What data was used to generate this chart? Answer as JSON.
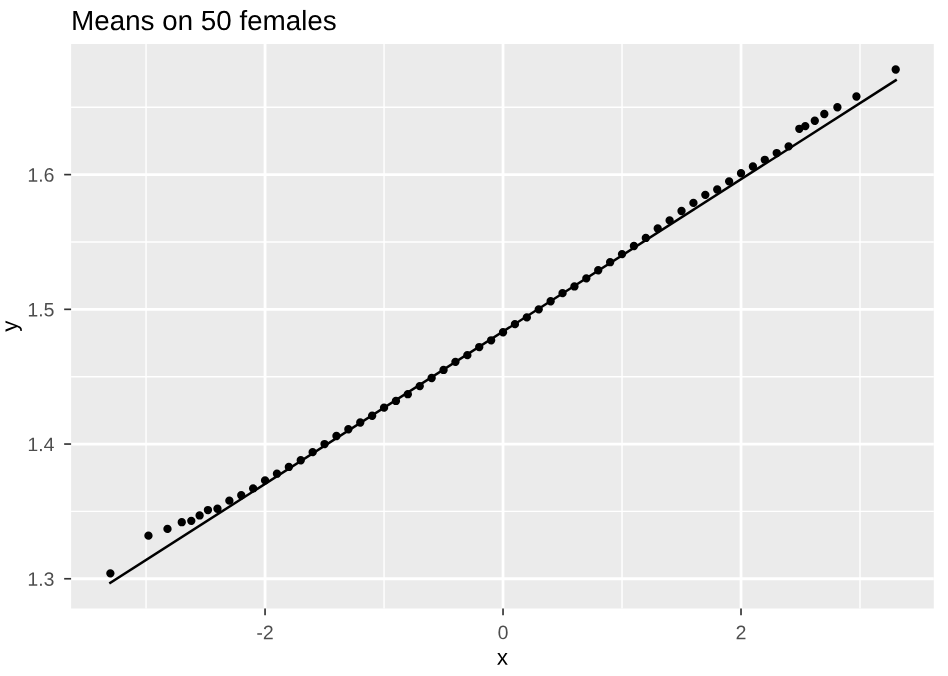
{
  "chart_data": {
    "type": "scatter",
    "title": "Means on 50 females",
    "xlabel": "x",
    "ylabel": "y",
    "xlim": [
      -3.63,
      3.62
    ],
    "ylim": [
      1.278,
      1.697
    ],
    "xticks": [
      {
        "value": -3,
        "label": null
      },
      -2,
      {
        "value": -1,
        "label": null
      },
      0,
      {
        "value": 1,
        "label": null
      },
      2,
      {
        "value": 3,
        "label": null
      }
    ],
    "yticks": [
      1.3,
      {
        "value": 1.35,
        "label": null
      },
      1.4,
      {
        "value": 1.45,
        "label": null
      },
      1.5,
      {
        "value": 1.55,
        "label": null
      },
      1.6,
      {
        "value": 1.65,
        "label": null
      }
    ],
    "grid": true,
    "legend": false,
    "series": [
      {
        "color": "#000000",
        "marker": "circle",
        "x": [
          -3.3,
          -2.98,
          -2.82,
          -2.7,
          -2.62,
          -2.55,
          -2.48,
          -2.4,
          -2.3,
          -2.2,
          -2.1,
          -2.0,
          -1.9,
          -1.8,
          -1.7,
          -1.6,
          -1.5,
          -1.4,
          -1.3,
          -1.2,
          -1.1,
          -1.0,
          -0.9,
          -0.8,
          -0.7,
          -0.6,
          -0.5,
          -0.4,
          -0.3,
          -0.2,
          -0.1,
          0.0,
          0.1,
          0.2,
          0.3,
          0.4,
          0.5,
          0.6,
          0.7,
          0.8,
          0.9,
          1.0,
          1.1,
          1.2,
          1.3,
          1.4,
          1.5,
          1.6,
          1.7,
          1.8,
          1.9,
          2.0,
          2.1,
          2.2,
          2.3,
          2.4,
          2.49,
          2.54,
          2.62,
          2.7,
          2.81,
          2.97,
          3.3
        ],
        "values": [
          1.304,
          1.332,
          1.337,
          1.342,
          1.343,
          1.347,
          1.351,
          1.352,
          1.358,
          1.362,
          1.367,
          1.373,
          1.378,
          1.383,
          1.388,
          1.394,
          1.4,
          1.406,
          1.411,
          1.416,
          1.421,
          1.427,
          1.432,
          1.437,
          1.443,
          1.449,
          1.455,
          1.461,
          1.466,
          1.472,
          1.477,
          1.483,
          1.489,
          1.494,
          1.5,
          1.506,
          1.512,
          1.517,
          1.523,
          1.529,
          1.535,
          1.541,
          1.547,
          1.553,
          1.56,
          1.566,
          1.573,
          1.579,
          1.585,
          1.589,
          1.595,
          1.601,
          1.606,
          1.611,
          1.616,
          1.621,
          1.634,
          1.636,
          1.64,
          1.645,
          1.65,
          1.658,
          1.678
        ]
      },
      {
        "type": "line",
        "color": "#000000",
        "line_style": "solid",
        "x": [
          -3.3,
          3.3
        ],
        "values": [
          1.297,
          1.67
        ]
      }
    ]
  }
}
